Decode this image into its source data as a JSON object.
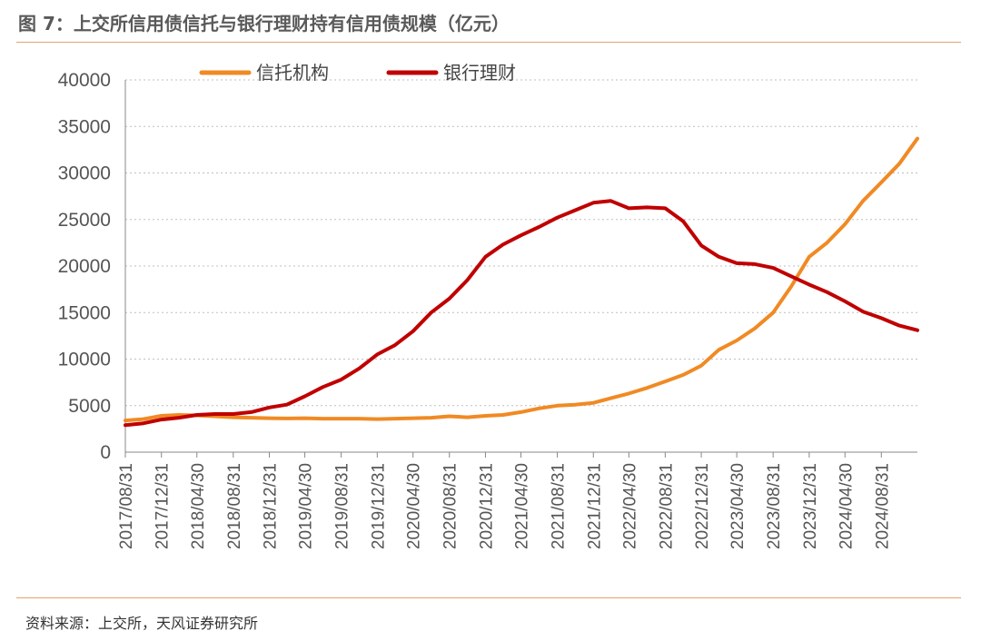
{
  "header": {
    "title": "图 7：上交所信用债信托与银行理财持有信用债规模（亿元）"
  },
  "footer": {
    "source": "资料来源：上交所，天风证券研究所"
  },
  "colors": {
    "accent_rule": "#e8a26a",
    "trust": "#f08a24",
    "bank": "#c00000"
  },
  "chart_data": {
    "type": "line",
    "title": "",
    "xlabel": "",
    "ylabel": "",
    "ylim": [
      0,
      40000
    ],
    "yticks": [
      0,
      5000,
      10000,
      15000,
      20000,
      25000,
      30000,
      35000,
      40000
    ],
    "x_tick_labels": [
      "2017/08/31",
      "2017/12/31",
      "2018/04/30",
      "2018/08/31",
      "2018/12/31",
      "2019/04/30",
      "2019/08/31",
      "2019/12/31",
      "2020/04/30",
      "2020/08/31",
      "2020/12/31",
      "2021/04/30",
      "2021/08/31",
      "2021/12/31",
      "2022/04/30",
      "2022/08/31",
      "2022/12/31",
      "2023/04/30",
      "2023/08/31",
      "2023/12/31",
      "2024/04/30",
      "2024/08/31"
    ],
    "grid": "horizontal",
    "legend_position": "top",
    "x_start": "2017/08/31",
    "x_end": "2024/12/31",
    "series": [
      {
        "name": "信托机构",
        "color": "#f08a24",
        "points": [
          [
            "2017/08/31",
            3400
          ],
          [
            "2017/10/31",
            3550
          ],
          [
            "2017/12/31",
            3900
          ],
          [
            "2018/02/28",
            4000
          ],
          [
            "2018/04/30",
            3950
          ],
          [
            "2018/06/30",
            3850
          ],
          [
            "2018/08/31",
            3750
          ],
          [
            "2018/10/31",
            3700
          ],
          [
            "2018/12/31",
            3650
          ],
          [
            "2019/02/28",
            3620
          ],
          [
            "2019/04/30",
            3650
          ],
          [
            "2019/06/30",
            3600
          ],
          [
            "2019/08/31",
            3600
          ],
          [
            "2019/10/31",
            3600
          ],
          [
            "2019/12/31",
            3550
          ],
          [
            "2020/02/29",
            3600
          ],
          [
            "2020/04/30",
            3650
          ],
          [
            "2020/06/30",
            3700
          ],
          [
            "2020/08/31",
            3850
          ],
          [
            "2020/10/31",
            3750
          ],
          [
            "2020/12/31",
            3900
          ],
          [
            "2021/02/28",
            4000
          ],
          [
            "2021/04/30",
            4300
          ],
          [
            "2021/06/30",
            4700
          ],
          [
            "2021/08/31",
            5000
          ],
          [
            "2021/10/31",
            5100
          ],
          [
            "2021/12/31",
            5300
          ],
          [
            "2022/02/28",
            5800
          ],
          [
            "2022/04/30",
            6300
          ],
          [
            "2022/06/30",
            6900
          ],
          [
            "2022/08/31",
            7600
          ],
          [
            "2022/10/31",
            8300
          ],
          [
            "2022/12/31",
            9300
          ],
          [
            "2023/02/28",
            11000
          ],
          [
            "2023/04/30",
            12000
          ],
          [
            "2023/06/30",
            13300
          ],
          [
            "2023/08/31",
            15000
          ],
          [
            "2023/10/31",
            17800
          ],
          [
            "2023/12/31",
            21000
          ],
          [
            "2024/02/29",
            22500
          ],
          [
            "2024/04/30",
            24500
          ],
          [
            "2024/06/30",
            27000
          ],
          [
            "2024/08/31",
            29000
          ],
          [
            "2024/10/31",
            31000
          ],
          [
            "2024/12/31",
            33700
          ]
        ]
      },
      {
        "name": "银行理财",
        "color": "#c00000",
        "points": [
          [
            "2017/08/31",
            2900
          ],
          [
            "2017/10/31",
            3100
          ],
          [
            "2017/12/31",
            3500
          ],
          [
            "2018/02/28",
            3700
          ],
          [
            "2018/04/30",
            4000
          ],
          [
            "2018/06/30",
            4100
          ],
          [
            "2018/08/31",
            4100
          ],
          [
            "2018/10/31",
            4300
          ],
          [
            "2018/12/31",
            4800
          ],
          [
            "2019/02/28",
            5100
          ],
          [
            "2019/04/30",
            6000
          ],
          [
            "2019/06/30",
            7000
          ],
          [
            "2019/08/31",
            7800
          ],
          [
            "2019/10/31",
            9000
          ],
          [
            "2019/12/31",
            10500
          ],
          [
            "2020/02/29",
            11500
          ],
          [
            "2020/04/30",
            13000
          ],
          [
            "2020/06/30",
            15000
          ],
          [
            "2020/08/31",
            16500
          ],
          [
            "2020/10/31",
            18500
          ],
          [
            "2020/12/31",
            21000
          ],
          [
            "2021/02/28",
            22300
          ],
          [
            "2021/04/30",
            23300
          ],
          [
            "2021/06/30",
            24200
          ],
          [
            "2021/08/31",
            25200
          ],
          [
            "2021/10/31",
            26000
          ],
          [
            "2021/12/31",
            26800
          ],
          [
            "2022/02/28",
            27000
          ],
          [
            "2022/04/30",
            26200
          ],
          [
            "2022/06/30",
            26300
          ],
          [
            "2022/08/31",
            26200
          ],
          [
            "2022/10/31",
            24800
          ],
          [
            "2022/12/31",
            22200
          ],
          [
            "2023/02/28",
            21000
          ],
          [
            "2023/04/30",
            20300
          ],
          [
            "2023/06/30",
            20200
          ],
          [
            "2023/08/31",
            19800
          ],
          [
            "2023/10/31",
            18900
          ],
          [
            "2023/12/31",
            18000
          ],
          [
            "2024/02/29",
            17200
          ],
          [
            "2024/04/30",
            16200
          ],
          [
            "2024/06/30",
            15100
          ],
          [
            "2024/08/31",
            14400
          ],
          [
            "2024/10/31",
            13600
          ],
          [
            "2024/12/31",
            13100
          ]
        ]
      }
    ]
  }
}
